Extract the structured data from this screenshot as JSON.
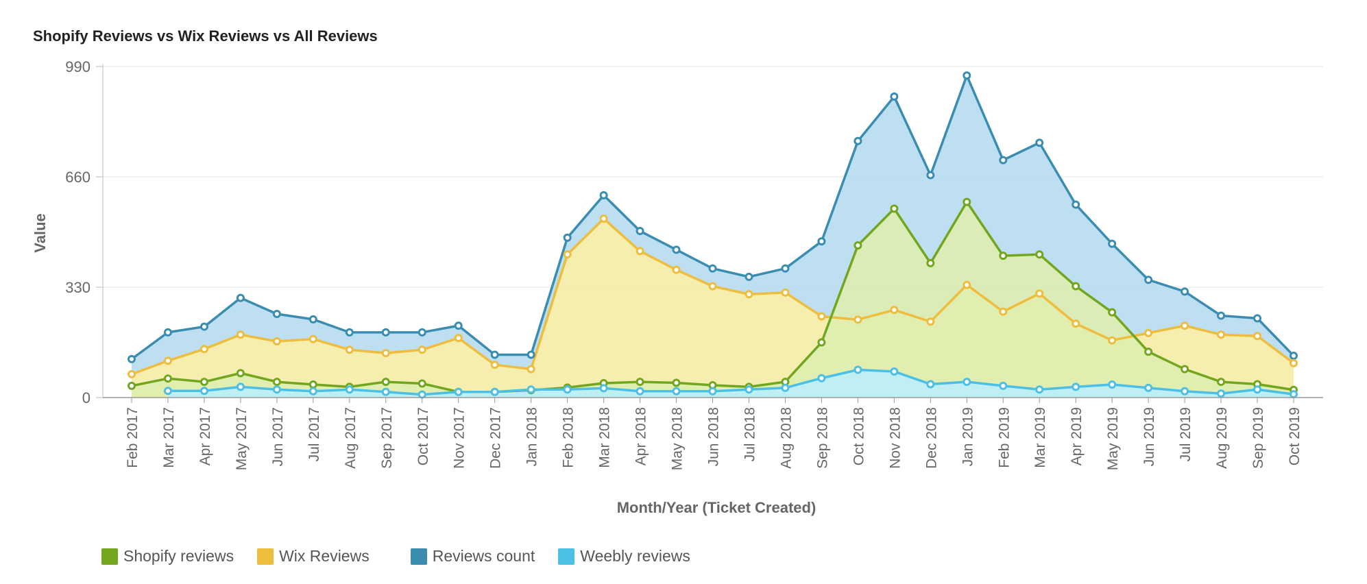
{
  "chart_data": {
    "type": "area",
    "title": "Shopify Reviews vs Wix Reviews vs All Reviews",
    "xlabel": "Month/Year (Ticket Created)",
    "ylabel": "Value",
    "ylim": [
      0,
      990
    ],
    "yticks": [
      0,
      330,
      660,
      990
    ],
    "grid": true,
    "legend_position": "bottom-left",
    "categories": [
      "Feb 2017",
      "Mar 2017",
      "Apr 2017",
      "May 2017",
      "Jun 2017",
      "Jul 2017",
      "Aug 2017",
      "Sep 2017",
      "Oct 2017",
      "Nov 2017",
      "Dec 2017",
      "Jan 2018",
      "Feb 2018",
      "Mar 2018",
      "Apr 2018",
      "May 2018",
      "Jun 2018",
      "Jul 2018",
      "Aug 2018",
      "Sep 2018",
      "Oct 2018",
      "Nov 2018",
      "Dec 2018",
      "Jan 2019",
      "Feb 2019",
      "Mar 2019",
      "Apr 2019",
      "May 2019",
      "Jun 2019",
      "Jul 2019",
      "Aug 2019",
      "Sep 2019",
      "Oct 2019"
    ],
    "series": [
      {
        "name": "Reviews count",
        "color": "#3a8db0",
        "fill": "#b6dcf0",
        "values": [
          115,
          195,
          212,
          298,
          250,
          234,
          195,
          195,
          195,
          215,
          128,
          128,
          478,
          605,
          498,
          442,
          386,
          361,
          386,
          467,
          767,
          900,
          665,
          963,
          710,
          762,
          577,
          460,
          352,
          317,
          245,
          237,
          125
        ]
      },
      {
        "name": "Wix Reviews",
        "color": "#eebd3e",
        "fill": "#fbf0a6",
        "values": [
          70,
          110,
          145,
          188,
          168,
          175,
          143,
          133,
          143,
          178,
          98,
          85,
          428,
          535,
          438,
          382,
          333,
          309,
          314,
          243,
          233,
          262,
          227,
          337,
          257,
          311,
          221,
          171,
          193,
          215,
          188,
          184,
          103
        ]
      },
      {
        "name": "Shopify reviews",
        "color": "#72a61f",
        "fill": "#deedaf",
        "values": [
          35,
          57,
          47,
          73,
          47,
          39,
          32,
          47,
          42,
          17,
          17,
          22,
          30,
          43,
          47,
          44,
          37,
          32,
          47,
          165,
          455,
          565,
          402,
          585,
          424,
          428,
          333,
          255,
          137,
          85,
          47,
          40,
          23
        ]
      },
      {
        "name": "Weebly reviews",
        "color": "#4cbfe6",
        "fill": "#bdeefb",
        "values": [
          null,
          20,
          20,
          32,
          24,
          19,
          24,
          17,
          9,
          17,
          17,
          24,
          24,
          28,
          19,
          19,
          19,
          24,
          29,
          58,
          83,
          78,
          40,
          47,
          35,
          24,
          32,
          39,
          29,
          19,
          12,
          24,
          10
        ]
      }
    ]
  },
  "legend": {
    "items": [
      {
        "label": "Shopify reviews",
        "color": "#72a61f"
      },
      {
        "label": "Wix Reviews",
        "color": "#eebd3e"
      },
      {
        "label": "Reviews count",
        "color": "#3a8db0"
      },
      {
        "label": "Weebly reviews",
        "color": "#4cbfe6"
      }
    ]
  }
}
